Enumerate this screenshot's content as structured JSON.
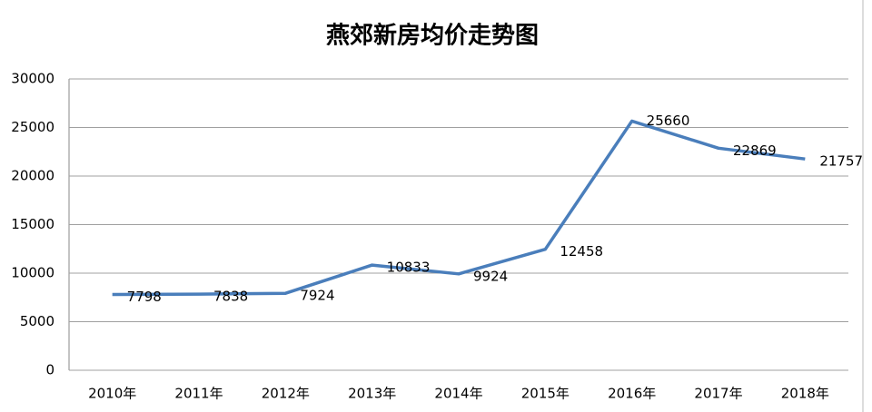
{
  "chart_data": {
    "type": "line",
    "title": "燕郊新房均价走势图",
    "categories": [
      "2010年",
      "2011年",
      "2012年",
      "2013年",
      "2014年",
      "2015年",
      "2016年",
      "2017年",
      "2018年"
    ],
    "values": [
      7798,
      7838,
      7924,
      10833,
      9924,
      12458,
      25660,
      22869,
      21757
    ],
    "color": "#4a7ebb",
    "ylim": [
      0,
      30000
    ],
    "yticks": [
      0,
      5000,
      10000,
      15000,
      20000,
      25000,
      30000
    ],
    "grid": true
  }
}
